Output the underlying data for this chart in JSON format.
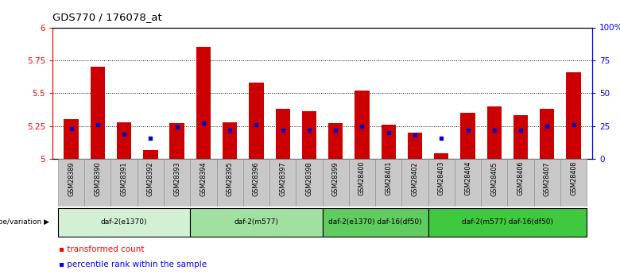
{
  "title": "GDS770 / 176078_at",
  "samples": [
    "GSM28389",
    "GSM28390",
    "GSM28391",
    "GSM28392",
    "GSM28393",
    "GSM28394",
    "GSM28395",
    "GSM28396",
    "GSM28397",
    "GSM28398",
    "GSM28399",
    "GSM28400",
    "GSM28401",
    "GSM28402",
    "GSM28403",
    "GSM28404",
    "GSM28405",
    "GSM28406",
    "GSM28407",
    "GSM28408"
  ],
  "red_values": [
    5.3,
    5.7,
    5.28,
    5.07,
    5.27,
    5.85,
    5.28,
    5.58,
    5.38,
    5.36,
    5.27,
    5.52,
    5.26,
    5.2,
    5.04,
    5.35,
    5.4,
    5.33,
    5.38,
    5.66
  ],
  "blue_values": [
    5.23,
    5.26,
    5.19,
    5.16,
    5.24,
    5.27,
    5.22,
    5.26,
    5.22,
    5.22,
    5.22,
    5.25,
    5.2,
    5.18,
    5.16,
    5.22,
    5.22,
    5.22,
    5.25,
    5.26
  ],
  "ylim_left": [
    5.0,
    6.0
  ],
  "ylim_right": [
    0,
    100
  ],
  "yticks_left": [
    5.0,
    5.25,
    5.5,
    5.75,
    6.0
  ],
  "yticks_right": [
    0,
    25,
    50,
    75,
    100
  ],
  "ytick_labels_right": [
    "0",
    "25",
    "50",
    "75",
    "100%"
  ],
  "groups": [
    {
      "label": "daf-2(e1370)",
      "start": 0,
      "end": 5,
      "color": "#d4f0d4"
    },
    {
      "label": "daf-2(m577)",
      "start": 5,
      "end": 10,
      "color": "#a0e0a0"
    },
    {
      "label": "daf-2(e1370) daf-16(df50)",
      "start": 10,
      "end": 14,
      "color": "#60cc60"
    },
    {
      "label": "daf-2(m577) daf-16(df50)",
      "start": 14,
      "end": 20,
      "color": "#40c840"
    }
  ],
  "bar_color": "#cc0000",
  "marker_color": "#0000cc",
  "bar_width": 0.55,
  "legend_items": [
    "transformed count",
    "percentile rank within the sample"
  ],
  "genotype_label": "genotype/variation"
}
